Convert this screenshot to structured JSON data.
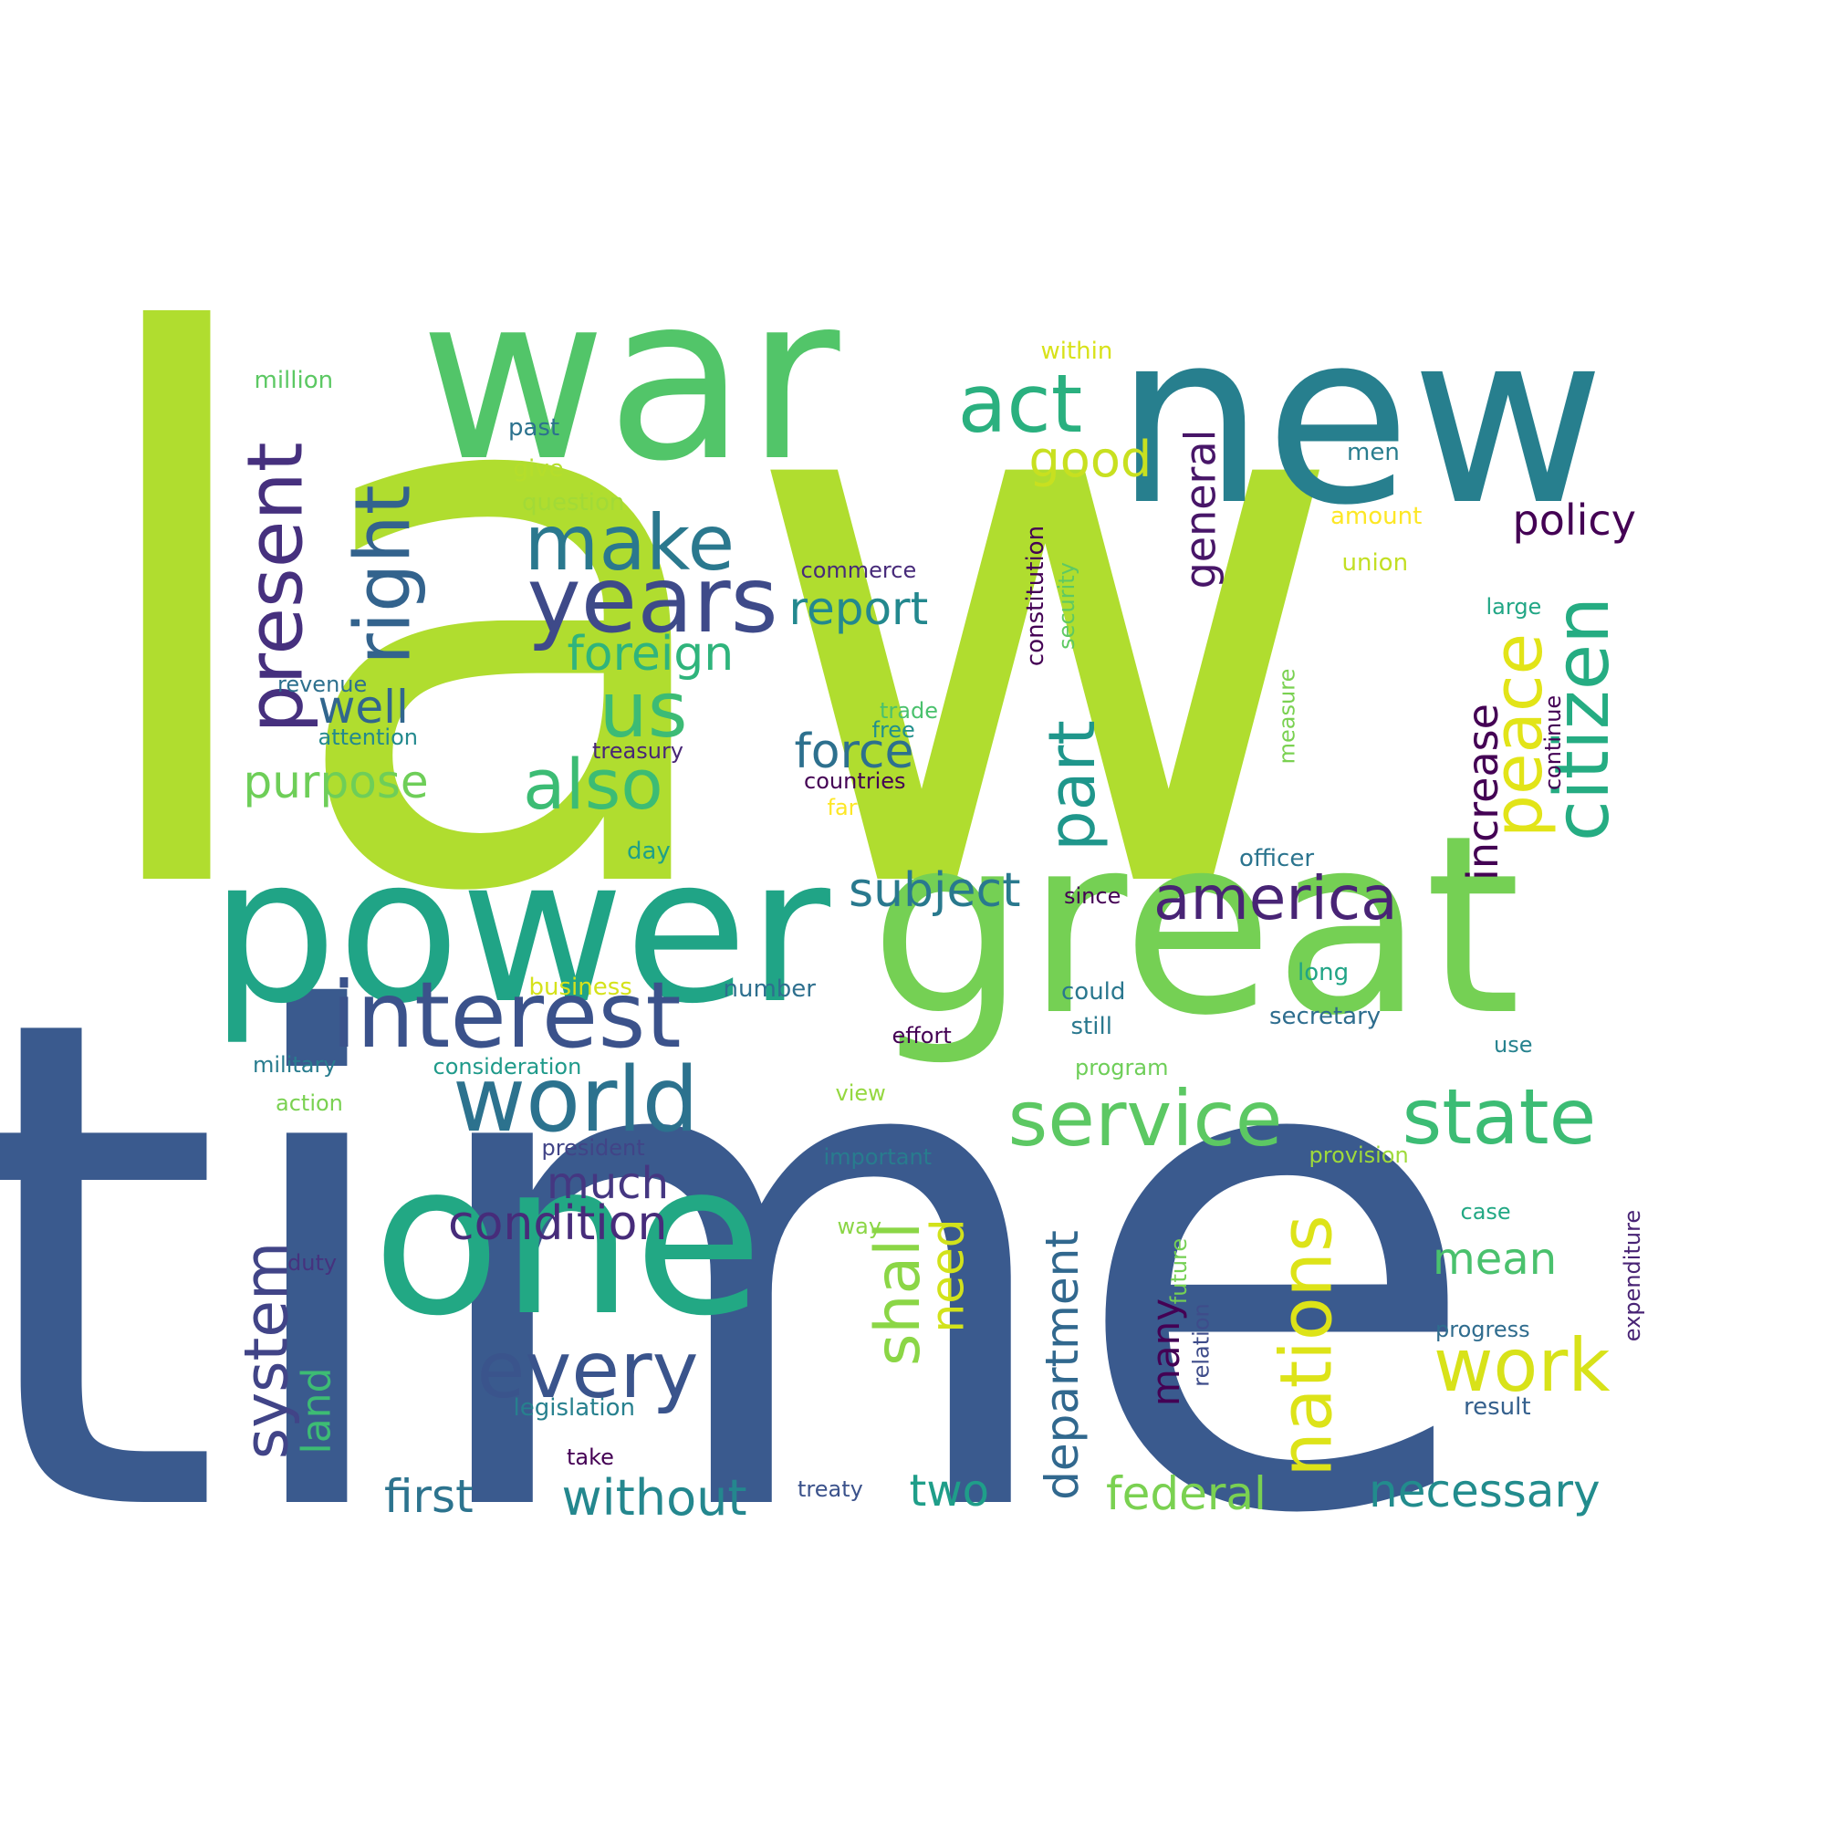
{
  "words": [
    {
      "text": "law",
      "color": "#b0dd2f"
    },
    {
      "text": "time",
      "color": "#3a5a8e"
    },
    {
      "text": "war",
      "color": "#52c569"
    },
    {
      "text": "new",
      "color": "#277f8e"
    },
    {
      "text": "great",
      "color": "#75d054"
    },
    {
      "text": "power",
      "color": "#20a486"
    },
    {
      "text": "one",
      "color": "#22a884"
    },
    {
      "text": "interest",
      "color": "#3b528b"
    },
    {
      "text": "years",
      "color": "#3e4a89"
    },
    {
      "text": "world",
      "color": "#2c728e"
    },
    {
      "text": "make",
      "color": "#2a788e"
    },
    {
      "text": "act",
      "color": "#2ab07f"
    },
    {
      "text": "us",
      "color": "#3cbb75"
    },
    {
      "text": "also",
      "color": "#3cbc74"
    },
    {
      "text": "every",
      "color": "#3a548c"
    },
    {
      "text": "service",
      "color": "#5cc863"
    },
    {
      "text": "state",
      "color": "#3cbc74"
    },
    {
      "text": "america",
      "color": "#482475"
    },
    {
      "text": "work",
      "color": "#d8e219"
    },
    {
      "text": "present",
      "color": "#46307e"
    },
    {
      "text": "right",
      "color": "#33638d"
    },
    {
      "text": "citizen",
      "color": "#25ac82"
    },
    {
      "text": "peace",
      "color": "#e2e418"
    },
    {
      "text": "part",
      "color": "#1f968b"
    },
    {
      "text": "nations",
      "color": "#dde318"
    },
    {
      "text": "shall",
      "color": "#8bd646"
    },
    {
      "text": "system",
      "color": "#414487"
    },
    {
      "text": "foreign",
      "color": "#2fb47c"
    },
    {
      "text": "report",
      "color": "#23888e"
    },
    {
      "text": "force",
      "color": "#2d708e"
    },
    {
      "text": "good",
      "color": "#c8e020"
    },
    {
      "text": "policy",
      "color": "#440154"
    },
    {
      "text": "general",
      "color": "#481668"
    },
    {
      "text": "increase",
      "color": "#440154"
    },
    {
      "text": "condition",
      "color": "#472c7a"
    },
    {
      "text": "subject",
      "color": "#29798e"
    },
    {
      "text": "much",
      "color": "#453781"
    },
    {
      "text": "purpose",
      "color": "#6ece58"
    },
    {
      "text": "well",
      "color": "#31668e"
    },
    {
      "text": "department",
      "color": "#31688e"
    },
    {
      "text": "necessary",
      "color": "#228c8d"
    },
    {
      "text": "mean",
      "color": "#4ac16d"
    },
    {
      "text": "federal",
      "color": "#7ad151"
    },
    {
      "text": "without",
      "color": "#24878e"
    },
    {
      "text": "first",
      "color": "#2c738e"
    },
    {
      "text": "two",
      "color": "#1f9e89"
    },
    {
      "text": "need",
      "color": "#d2e21b"
    },
    {
      "text": "land",
      "color": "#3dbc74"
    },
    {
      "text": "many",
      "color": "#440154"
    },
    {
      "text": "within",
      "color": "#d8e219"
    },
    {
      "text": "million",
      "color": "#5cc863"
    },
    {
      "text": "past",
      "color": "#2c728e"
    },
    {
      "text": "give",
      "color": "#b5de2b"
    },
    {
      "text": "question",
      "color": "#a2da37"
    },
    {
      "text": "men",
      "color": "#287d8e"
    },
    {
      "text": "amount",
      "color": "#fde725"
    },
    {
      "text": "union",
      "color": "#c2df23"
    },
    {
      "text": "commerce",
      "color": "#472a7a"
    },
    {
      "text": "large",
      "color": "#21a685"
    },
    {
      "text": "constitution",
      "color": "#440154"
    },
    {
      "text": "security",
      "color": "#5ec962"
    },
    {
      "text": "revenue",
      "color": "#2d708e"
    },
    {
      "text": "attention",
      "color": "#23898e"
    },
    {
      "text": "trade",
      "color": "#4ac16d"
    },
    {
      "text": "free",
      "color": "#21908d"
    },
    {
      "text": "treasury",
      "color": "#482677"
    },
    {
      "text": "countries",
      "color": "#440154"
    },
    {
      "text": "far",
      "color": "#fde725"
    },
    {
      "text": "measure",
      "color": "#7ad151"
    },
    {
      "text": "continue",
      "color": "#440154"
    },
    {
      "text": "day",
      "color": "#1fa088"
    },
    {
      "text": "officer",
      "color": "#2b748e"
    },
    {
      "text": "since",
      "color": "#440154"
    },
    {
      "text": "business",
      "color": "#d5e21a"
    },
    {
      "text": "number",
      "color": "#2e6f8e"
    },
    {
      "text": "could",
      "color": "#2a778e"
    },
    {
      "text": "still",
      "color": "#2a788e"
    },
    {
      "text": "long",
      "color": "#20a486"
    },
    {
      "text": "secretary",
      "color": "#2e6d8e"
    },
    {
      "text": "effort",
      "color": "#440154"
    },
    {
      "text": "use",
      "color": "#26828e"
    },
    {
      "text": "military",
      "color": "#287c8e"
    },
    {
      "text": "consideration",
      "color": "#1f9a8a"
    },
    {
      "text": "program",
      "color": "#6ece58"
    },
    {
      "text": "view",
      "color": "#95d840"
    },
    {
      "text": "action",
      "color": "#7ad151"
    },
    {
      "text": "president",
      "color": "#414487"
    },
    {
      "text": "important",
      "color": "#287c8e"
    },
    {
      "text": "provision",
      "color": "#9fda3a"
    },
    {
      "text": "duty",
      "color": "#46327e"
    },
    {
      "text": "way",
      "color": "#8bd646"
    },
    {
      "text": "case",
      "color": "#22a884"
    },
    {
      "text": "expenditure",
      "color": "#482374"
    },
    {
      "text": "future",
      "color": "#75d054"
    },
    {
      "text": "relation",
      "color": "#3e4c8a"
    },
    {
      "text": "progress",
      "color": "#2f6c8e"
    },
    {
      "text": "legislation",
      "color": "#27808e"
    },
    {
      "text": "result",
      "color": "#35608d"
    },
    {
      "text": "take",
      "color": "#440154"
    },
    {
      "text": "treaty",
      "color": "#3b528b"
    }
  ]
}
